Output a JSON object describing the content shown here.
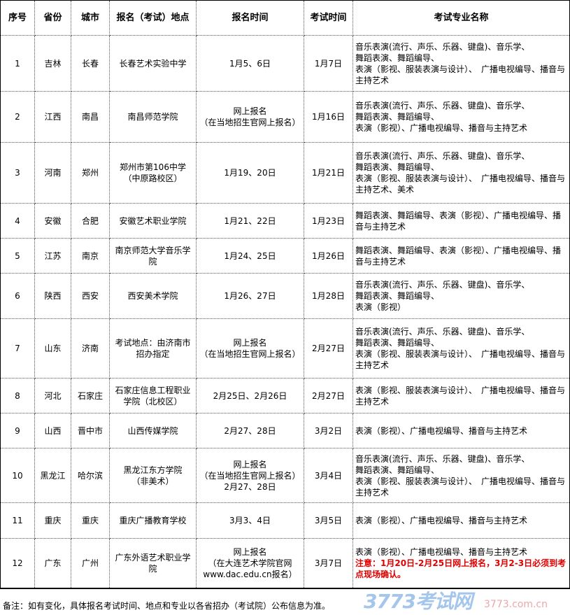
{
  "headers": [
    "序号",
    "省份",
    "城市",
    "报名（考试）地点",
    "报名时间",
    "考试时间",
    "考试专业名称"
  ],
  "rows": [
    {
      "no": "1",
      "province": "吉林",
      "city": "长春",
      "location": "长春艺术实验中学",
      "reg_time": "1月5、6日",
      "exam_time": "1月7日",
      "majors": "音乐表演(流行、声乐、乐器、键盘)、音乐学、\n舞蹈表演、舞蹈编导、\n表演（影视、服装表演与设计）、　广播电视编导、播音与主持艺术"
    },
    {
      "no": "2",
      "province": "江西",
      "city": "南昌",
      "location": "南昌师范学院",
      "reg_time": "网上报名\n（在当地招生官网上报名）",
      "exam_time": "1月16日",
      "majors": "音乐表演(流行、声乐、乐器、键盘)、音乐学、\n舞蹈表演、舞蹈编导、\n表演（影视）、广播电视编导、播音与主持艺术"
    },
    {
      "no": "3",
      "province": "河南",
      "city": "郑州",
      "location": "郑州市第106中学\n（中原路校区）",
      "reg_time": "1月19、20日",
      "exam_time": "1月21日",
      "majors": "音乐表演(流行、声乐、乐器、键盘)、音乐学、\n舞蹈表演、舞蹈编导、\n表演（影视、服装表演与设计）、　广播电视编导、播音与主持艺术、美术"
    },
    {
      "no": "4",
      "province": "安徽",
      "city": "合肥",
      "location": "安徽艺术职业学院",
      "reg_time": "1月21、22日",
      "exam_time": "1月23日",
      "majors": "舞蹈表演、舞蹈编导、表演（影视）、广播电视编导、播音与主持艺术"
    },
    {
      "no": "5",
      "province": "江苏",
      "city": "南京",
      "location": "南京师范大学音乐学院",
      "reg_time": "1月24、25日",
      "exam_time": "1月26日",
      "majors": "舞蹈表演、舞蹈编导、表演（影视）、广播电视编导、播音与主持艺术"
    },
    {
      "no": "6",
      "province": "陕西",
      "city": "西安",
      "location": "西安美术学院",
      "reg_time": "1月26、27日",
      "exam_time": "1月28日",
      "majors": "音乐表演(流行、声乐、乐器、键盘)、音乐学、\n舞蹈表演、舞蹈编导、\n表演（影视）"
    },
    {
      "no": "7",
      "province": "山东",
      "city": "济南",
      "location": "考试地点：由济南市招办指定",
      "reg_time": "网上报名\n（在当地招生官网上报名）",
      "exam_time": "2月27日",
      "majors": "音乐表演(流行、声乐、乐器、键盘)、音乐学、\n舞蹈表演、舞蹈编导、\n表演（影视、服装表演与设计）、　广播电视编导、播音与主持艺术"
    },
    {
      "no": "8",
      "province": "河北",
      "city": "石家庄",
      "location": "石家庄信息工程职业学院（北校区）",
      "reg_time": "2月25日、2月26日",
      "exam_time": "2月27日",
      "majors": "表演（影视、服装表演与设计）、　广播电视编导、播音与主持艺术"
    },
    {
      "no": "9",
      "province": "山西",
      "city": "晋中市",
      "location": "山西传媒学院",
      "reg_time": "2月27、28日",
      "exam_time": "3月2日",
      "majors": "表演（影视）、广播电视编导、播音与主持艺术"
    },
    {
      "no": "10",
      "province": "黑龙江",
      "city": "哈尔滨",
      "location": "黑龙江东方学院\n（非美术）",
      "reg_time": "网上报名\n（在当地招生官网上报名）\n2月27、28日",
      "exam_time": "3月4日",
      "majors": "音乐表演(流行、声乐、乐器、键盘)、音乐学、\n舞蹈表演、舞蹈编导、\n表演（影视、服装表演与设计）、　广播电视编导、播音与主持艺术"
    },
    {
      "no": "11",
      "province": "重庆",
      "city": "重庆",
      "location": "重庆广播教育学校",
      "reg_time": "3月3、4日",
      "exam_time": "3月5日",
      "majors": "表演（影视）、广播电视编导、播音与主持艺术"
    },
    {
      "no": "12",
      "province": "广东",
      "city": "广州",
      "location": "广东外语艺术职业学院",
      "reg_time": "网上报名\n（在大连艺术学院官网www.dac.edu.cn报名）",
      "exam_time": "3月7日",
      "majors": "表演（影视）、广播电视编导、播音与主持艺术",
      "note": "注意：1月20日-2月25日网上报名，3月2-3日必须到考点现场确认。"
    }
  ],
  "footer": "备注：如有变化，具体报名考试时间、地点和专业以各省招办（考试院）公布信息为准。",
  "watermark": {
    "logo": "3773考试网",
    "domain": "3773.com.cn"
  },
  "colors": {
    "note": "#e00000"
  }
}
